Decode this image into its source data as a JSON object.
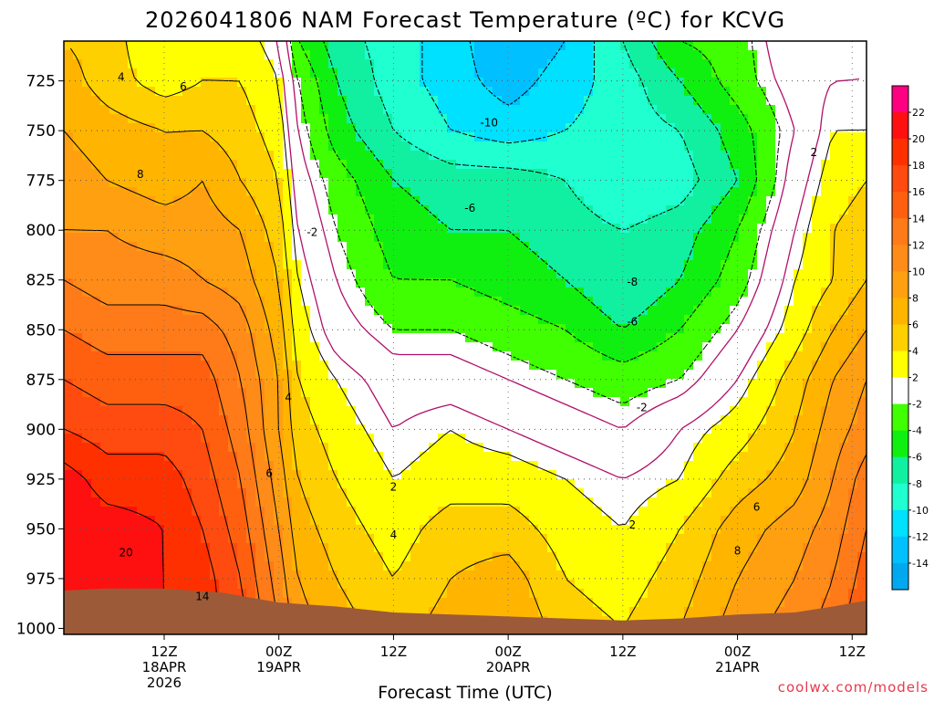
{
  "chart_data": {
    "type": "heatmap",
    "title": "2026041806 NAM Forecast Temperature (ºC) for KCVG",
    "xlabel": "Forecast Time (UTC)",
    "ylabel": "",
    "credit": "coolwx.com/models",
    "y_axis": {
      "scale": "pressure-inverted",
      "ylim": [
        1003,
        705
      ],
      "ticks": [
        725,
        750,
        775,
        800,
        825,
        850,
        875,
        900,
        925,
        950,
        975,
        1000
      ]
    },
    "x_axis": {
      "range_hours": [
        -4.5,
        79.5
      ],
      "ticks": [
        {
          "hour": 6,
          "l1": "12Z",
          "l2": "18APR",
          "l3": "2026"
        },
        {
          "hour": 18,
          "l1": "00Z",
          "l2": "19APR",
          "l3": ""
        },
        {
          "hour": 30,
          "l1": "12Z",
          "l2": "",
          "l3": ""
        },
        {
          "hour": 42,
          "l1": "00Z",
          "l2": "20APR",
          "l3": ""
        },
        {
          "hour": 54,
          "l1": "12Z",
          "l2": "",
          "l3": ""
        },
        {
          "hour": 66,
          "l1": "00Z",
          "l2": "21APR",
          "l3": ""
        },
        {
          "hour": 78,
          "l1": "12Z",
          "l2": "",
          "l3": ""
        }
      ]
    },
    "grid": true,
    "colorbar": {
      "position": "right",
      "labels": [
        "22",
        "20",
        "18",
        "16",
        "14",
        "12",
        "10",
        "8",
        "6",
        "4",
        "2",
        "-2",
        "-4",
        "-6",
        "-8",
        "-10",
        "-12",
        "-14"
      ],
      "colors": [
        "#ff0080",
        "#ff1010",
        "#ff3000",
        "#ff4a10",
        "#ff6010",
        "#ff7a18",
        "#ff8c18",
        "#ffa010",
        "#ffb400",
        "#ffd000",
        "#ffff00",
        "#ffffff",
        "#40ff00",
        "#10f010",
        "#10f0a0",
        "#20ffd0",
        "#00e0ff",
        "#00c0ff",
        "#00a8f0"
      ]
    },
    "temperature_field": {
      "hours": [
        -4.5,
        0,
        6,
        10,
        14,
        18,
        20,
        24,
        30,
        36,
        42,
        48,
        54,
        60,
        66,
        72,
        76,
        79.5
      ],
      "pressures": [
        705,
        725,
        750,
        775,
        800,
        825,
        850,
        875,
        900,
        925,
        950,
        975,
        1000
      ],
      "values": [
        [
          6,
          5,
          2,
          3,
          3,
          1,
          -4,
          -7,
          -9,
          -11,
          -14,
          -12,
          -8,
          -4,
          -3,
          1,
          0,
          1
        ],
        [
          7,
          5,
          3,
          4,
          4,
          2,
          -2,
          -6,
          -9,
          -11,
          -13,
          -11,
          -9,
          -6,
          -3,
          0,
          1,
          1
        ],
        [
          8,
          7,
          6,
          6,
          5,
          3,
          -1,
          -5,
          -8,
          -10,
          -11,
          -10,
          -9,
          -8,
          -5,
          -1,
          2,
          2
        ],
        [
          9,
          8,
          7,
          8,
          6,
          4,
          0,
          -3,
          -6,
          -7,
          -7,
          -8,
          -10,
          -9,
          -6,
          0,
          3,
          4
        ],
        [
          10,
          10,
          9,
          9,
          8,
          5,
          1,
          -2,
          -5,
          -6,
          -6,
          -7,
          -8,
          -7,
          -4,
          1,
          4,
          5
        ],
        [
          12,
          11,
          11,
          10,
          9,
          6,
          2,
          -1,
          -4,
          -4,
          -5,
          -6,
          -8,
          -6,
          -3,
          2,
          4,
          6
        ],
        [
          14,
          13,
          13,
          13,
          11,
          7,
          3,
          0,
          -2,
          -2,
          -3,
          -4,
          -6,
          -4,
          -1,
          3,
          6,
          8
        ],
        [
          16,
          15,
          15,
          15,
          12,
          8,
          4,
          2,
          0,
          0,
          -1,
          -2,
          -3,
          -2,
          1,
          5,
          8,
          10
        ],
        [
          18,
          17,
          17,
          16,
          13,
          8,
          5,
          3,
          1,
          2,
          1,
          0,
          -1,
          1,
          3,
          6,
          9,
          11
        ],
        [
          21,
          19,
          19,
          17,
          14,
          9,
          6,
          4,
          2,
          3,
          3,
          2,
          1,
          2,
          5,
          7,
          10,
          13
        ],
        [
          22,
          21,
          20,
          18,
          15,
          10,
          7,
          5,
          3,
          5,
          5,
          3,
          2,
          4,
          7,
          9,
          11,
          14
        ],
        [
          22,
          21,
          20,
          19,
          16,
          11,
          8,
          6,
          4,
          6,
          7,
          4,
          3,
          5,
          8,
          10,
          12,
          15
        ],
        [
          22,
          21,
          20,
          19,
          17,
          12,
          9,
          7,
          5,
          7,
          8,
          5,
          4,
          6,
          9,
          11,
          13,
          16
        ]
      ]
    },
    "surface_pressure": {
      "hours": [
        -4.5,
        0,
        6,
        12,
        18,
        24,
        30,
        36,
        42,
        48,
        54,
        60,
        66,
        72,
        76,
        79.5
      ],
      "values": [
        981,
        980,
        980,
        982,
        987,
        989,
        992,
        993,
        994,
        995,
        996,
        995,
        993,
        992,
        989,
        986
      ]
    },
    "contour_labels": [
      {
        "text": "4",
        "hour": 1.5,
        "p": 723
      },
      {
        "text": "6",
        "hour": 8,
        "p": 728
      },
      {
        "text": "8",
        "hour": 3.5,
        "p": 772
      },
      {
        "text": "-2",
        "hour": 21.5,
        "p": 801
      },
      {
        "text": "4",
        "hour": 19,
        "p": 884
      },
      {
        "text": "6",
        "hour": 17,
        "p": 922
      },
      {
        "text": "2",
        "hour": 30,
        "p": 929
      },
      {
        "text": "4",
        "hour": 30,
        "p": 953
      },
      {
        "text": "-10",
        "hour": 40,
        "p": 746
      },
      {
        "text": "-6",
        "hour": 38,
        "p": 789
      },
      {
        "text": "-8",
        "hour": 55,
        "p": 826
      },
      {
        "text": "-6",
        "hour": 55,
        "p": 846
      },
      {
        "text": "-2",
        "hour": 56,
        "p": 889
      },
      {
        "text": "2",
        "hour": 55,
        "p": 948
      },
      {
        "text": "6",
        "hour": 68,
        "p": 939
      },
      {
        "text": "8",
        "hour": 66,
        "p": 961
      },
      {
        "text": "2",
        "hour": 74,
        "p": 761
      },
      {
        "text": "20",
        "hour": 2,
        "p": 962
      },
      {
        "text": "14",
        "hour": 10,
        "p": 984
      }
    ]
  }
}
